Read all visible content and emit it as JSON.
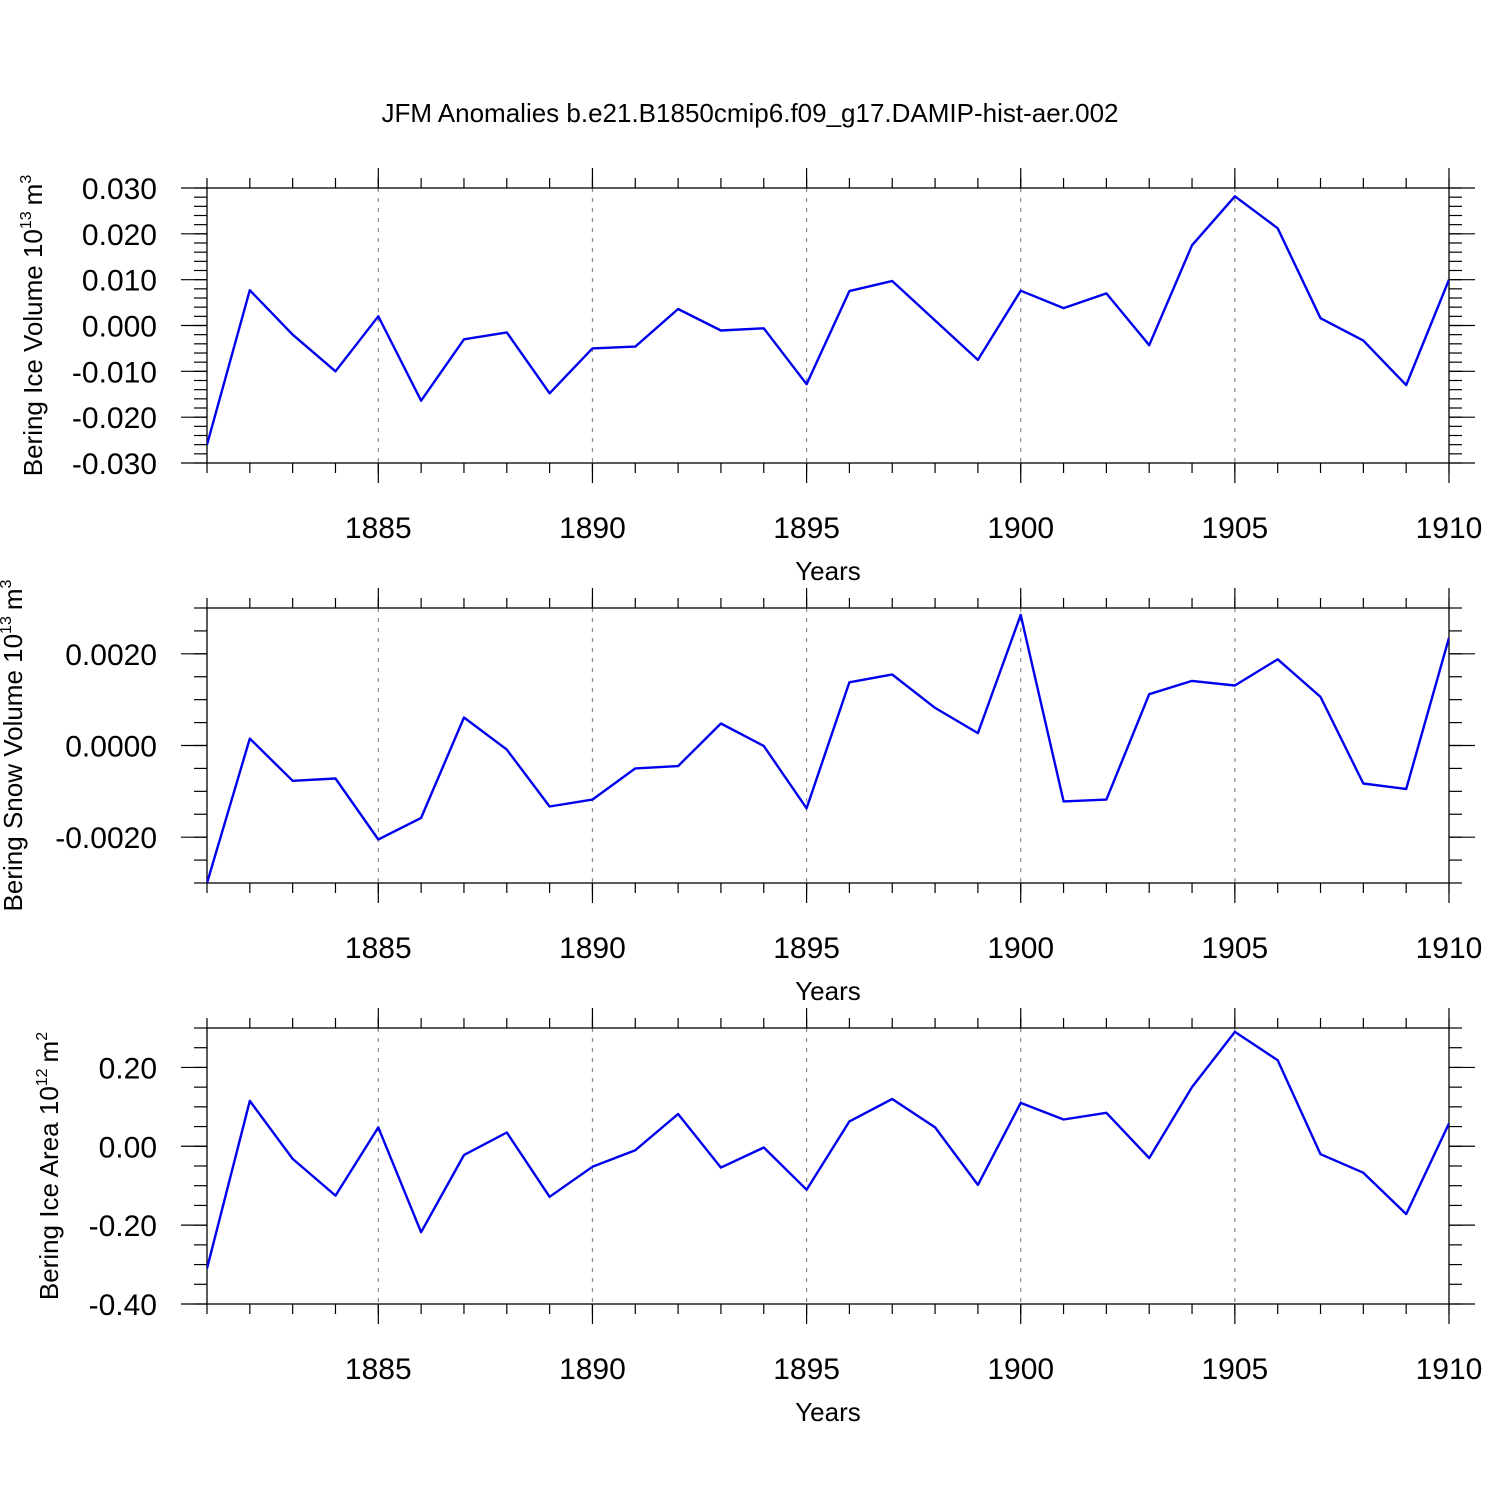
{
  "chart_data": {
    "title": "JFM Anomalies b.e21.B1850cmip6.f09_g17.DAMIP-hist-aer.002",
    "line_color": "#0000ee",
    "panels": [
      {
        "type": "line",
        "name": "ice-volume",
        "ylabel": "Bering Ice Volume 10",
        "ylabel_exp": "13",
        "ylabel_unit": "m",
        "ylabel_unit_exp": "3",
        "xlabel": "Years",
        "xlim": [
          1881,
          1910
        ],
        "ylim": [
          -0.03,
          0.03
        ],
        "x_ticks": [
          1885,
          1890,
          1895,
          1900,
          1905,
          1910
        ],
        "x_tick_labels": [
          "1885",
          "1890",
          "1895",
          "1900",
          "1905",
          "1910"
        ],
        "grid_x": [
          1885,
          1890,
          1895,
          1900,
          1905
        ],
        "y_ticks": [
          0.03,
          0.02,
          0.01,
          0.0,
          -0.01,
          -0.02,
          -0.03
        ],
        "y_tick_labels": [
          "0.030",
          "0.020",
          "0.010",
          "0.000",
          "-0.010",
          "-0.020",
          "-0.030"
        ],
        "y_minor_step": 0.002,
        "x": [
          1881,
          1882,
          1883,
          1884,
          1885,
          1886,
          1887,
          1888,
          1889,
          1890,
          1891,
          1892,
          1893,
          1894,
          1895,
          1896,
          1897,
          1898,
          1899,
          1900,
          1901,
          1902,
          1903,
          1904,
          1905,
          1906,
          1907,
          1908,
          1909,
          1910
        ],
        "values": [
          -0.026,
          0.0077,
          -0.002,
          -0.01,
          0.002,
          -0.0164,
          -0.003,
          -0.0015,
          -0.0148,
          -0.005,
          -0.0046,
          0.0036,
          -0.0011,
          -0.0006,
          -0.0128,
          0.0075,
          0.0097,
          0.0011,
          -0.0075,
          0.0076,
          0.0038,
          0.007,
          -0.0043,
          0.0175,
          0.0282,
          0.0212,
          0.0016,
          -0.0033,
          -0.013,
          0.01
        ]
      },
      {
        "type": "line",
        "name": "snow-volume",
        "ylabel": "Bering Snow Volume 10",
        "ylabel_exp": "13",
        "ylabel_unit": "m",
        "ylabel_unit_exp": "3",
        "xlabel": "Years",
        "xlim": [
          1881,
          1910
        ],
        "ylim": [
          -0.003,
          0.003
        ],
        "x_ticks": [
          1885,
          1890,
          1895,
          1900,
          1905,
          1910
        ],
        "x_tick_labels": [
          "1885",
          "1890",
          "1895",
          "1900",
          "1905",
          "1910"
        ],
        "grid_x": [
          1885,
          1890,
          1895,
          1900,
          1905
        ],
        "y_ticks": [
          0.002,
          0.0,
          -0.002
        ],
        "y_tick_labels": [
          "0.0020",
          "0.0000",
          "-0.0020"
        ],
        "y_minor_step": 0.0005,
        "x": [
          1881,
          1882,
          1883,
          1884,
          1885,
          1886,
          1887,
          1888,
          1889,
          1890,
          1891,
          1892,
          1893,
          1894,
          1895,
          1896,
          1897,
          1898,
          1899,
          1900,
          1901,
          1902,
          1903,
          1904,
          1905,
          1906,
          1907,
          1908,
          1909,
          1910
        ],
        "values": [
          -0.003,
          0.00015,
          -0.00077,
          -0.00072,
          -0.00205,
          -0.00158,
          0.00061,
          -9e-05,
          -0.00133,
          -0.00118,
          -0.0005,
          -0.00045,
          0.00048,
          -1e-05,
          -0.00137,
          0.00138,
          0.00155,
          0.00082,
          0.00027,
          0.00285,
          -0.00122,
          -0.00118,
          0.00112,
          0.00141,
          0.00131,
          0.00188,
          0.00106,
          -0.00083,
          -0.00095,
          0.00235
        ]
      },
      {
        "type": "line",
        "name": "ice-area",
        "ylabel": "Bering Ice Area 10",
        "ylabel_exp": "12",
        "ylabel_unit": "m",
        "ylabel_unit_exp": "2",
        "xlabel": "Years",
        "xlim": [
          1881,
          1910
        ],
        "ylim": [
          -0.4,
          0.3
        ],
        "x_ticks": [
          1885,
          1890,
          1895,
          1900,
          1905,
          1910
        ],
        "x_tick_labels": [
          "1885",
          "1890",
          "1895",
          "1900",
          "1905",
          "1910"
        ],
        "grid_x": [
          1885,
          1890,
          1895,
          1900,
          1905
        ],
        "y_ticks": [
          0.2,
          0.0,
          -0.2,
          -0.4
        ],
        "y_tick_labels": [
          "0.20",
          "0.00",
          "-0.20",
          "-0.40"
        ],
        "y_minor_step": 0.05,
        "x": [
          1881,
          1882,
          1883,
          1884,
          1885,
          1886,
          1887,
          1888,
          1889,
          1890,
          1891,
          1892,
          1893,
          1894,
          1895,
          1896,
          1897,
          1898,
          1899,
          1900,
          1901,
          1902,
          1903,
          1904,
          1905,
          1906,
          1907,
          1908,
          1909,
          1910
        ],
        "values": [
          -0.31,
          0.115,
          -0.032,
          -0.125,
          0.048,
          -0.218,
          -0.022,
          0.035,
          -0.128,
          -0.052,
          -0.01,
          0.082,
          -0.054,
          -0.003,
          -0.11,
          0.063,
          0.12,
          0.048,
          -0.098,
          0.11,
          0.068,
          0.085,
          -0.03,
          0.15,
          0.29,
          0.218,
          -0.02,
          -0.067,
          -0.172,
          0.058
        ]
      }
    ]
  }
}
